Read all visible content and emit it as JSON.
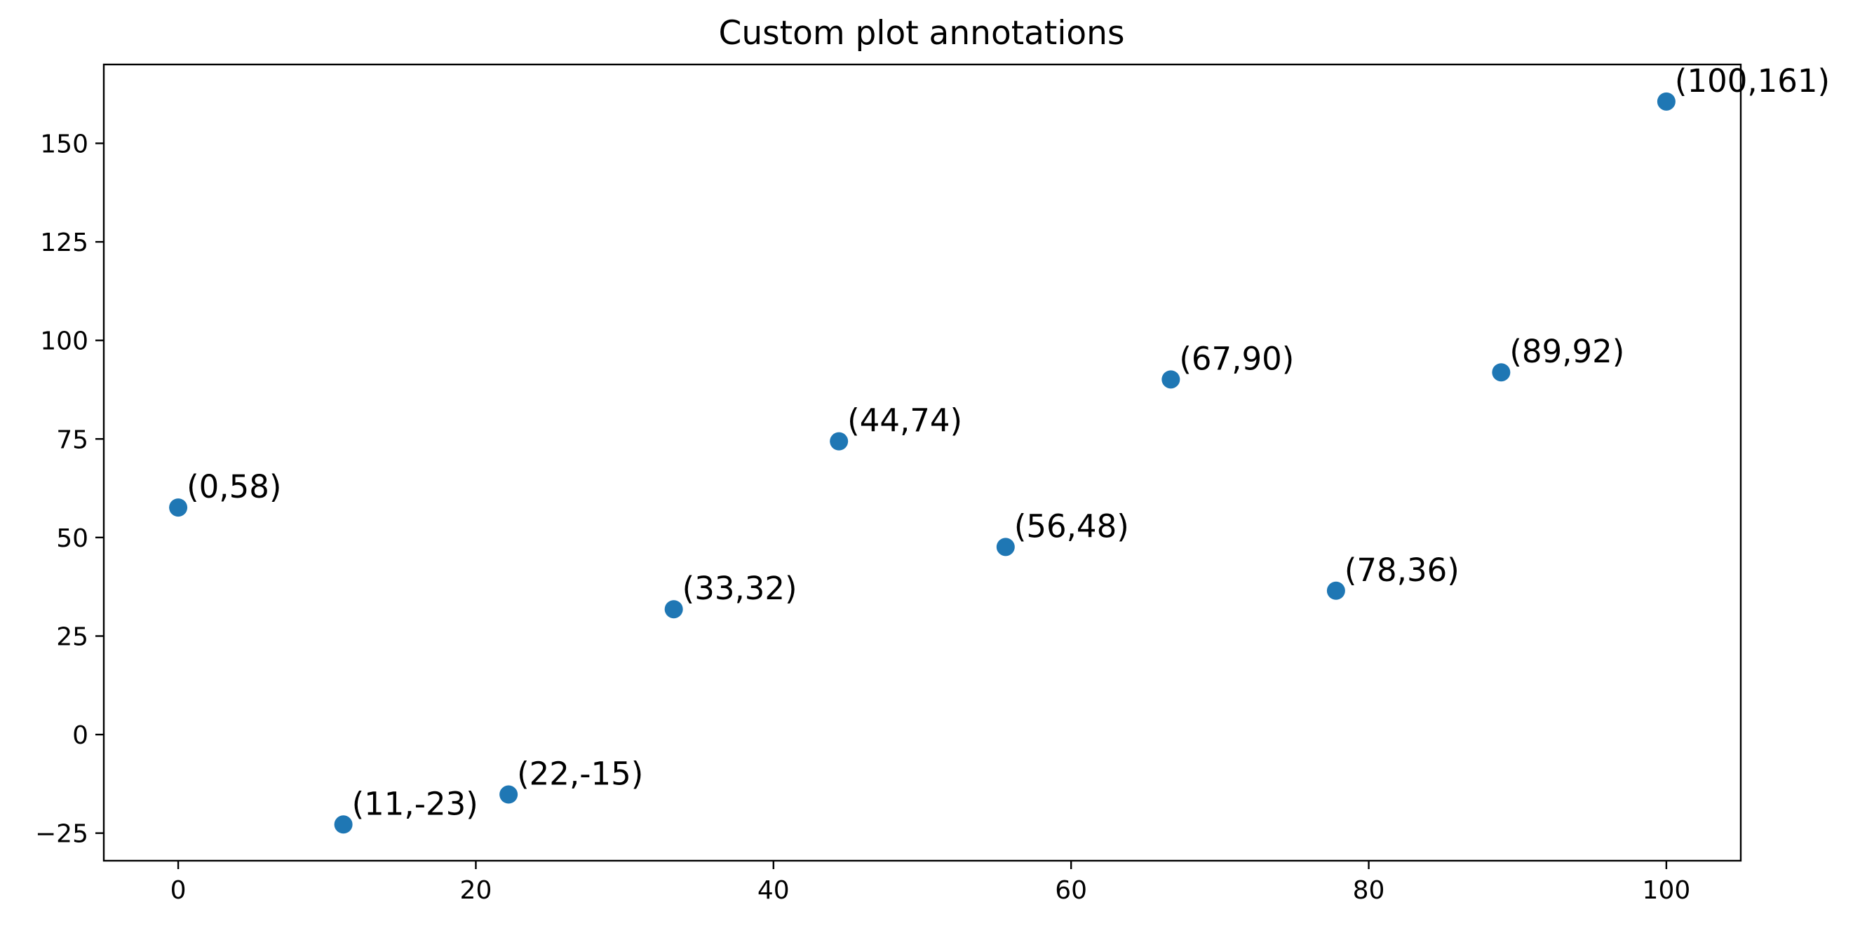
{
  "chart_data": {
    "type": "scatter",
    "title": "Custom plot annotations",
    "xlabel": "",
    "ylabel": "",
    "xlim": [
      -5,
      105
    ],
    "ylim": [
      -32,
      170
    ],
    "xticks": [
      0,
      20,
      40,
      60,
      80,
      100
    ],
    "yticks": [
      -25,
      0,
      25,
      50,
      75,
      100,
      125,
      150
    ],
    "grid": false,
    "marker_color": "#1f77b4",
    "points": [
      {
        "x": 0,
        "y": 57.6,
        "label": "(0,58)"
      },
      {
        "x": 11.1,
        "y": -22.8,
        "label": "(11,-23)"
      },
      {
        "x": 22.2,
        "y": -15.2,
        "label": "(22,-15)"
      },
      {
        "x": 33.3,
        "y": 31.8,
        "label": "(33,32)"
      },
      {
        "x": 44.4,
        "y": 74.4,
        "label": "(44,74)"
      },
      {
        "x": 55.6,
        "y": 47.6,
        "label": "(56,48)"
      },
      {
        "x": 66.7,
        "y": 90.1,
        "label": "(67,90)"
      },
      {
        "x": 77.8,
        "y": 36.5,
        "label": "(78,36)"
      },
      {
        "x": 88.9,
        "y": 91.9,
        "label": "(89,92)"
      },
      {
        "x": 100,
        "y": 160.6,
        "label": "(100,161)"
      }
    ]
  }
}
